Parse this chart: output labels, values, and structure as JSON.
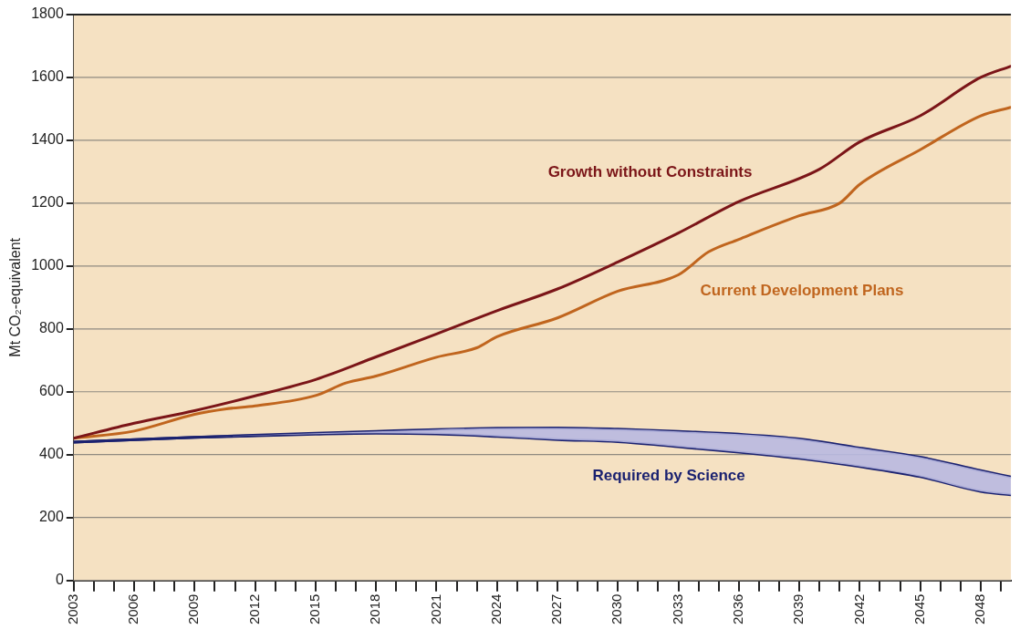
{
  "chart_data": {
    "type": "line",
    "ylabel": "Mt CO₂-equivalent",
    "xlim": [
      2003,
      2049.5
    ],
    "xticks": [
      2003,
      {
        "value": 2004,
        "label": null
      },
      {
        "value": 2005,
        "label": null
      },
      2006,
      {
        "value": 2007,
        "label": null
      },
      {
        "value": 2008,
        "label": null
      },
      2009,
      {
        "value": 2010,
        "label": null
      },
      {
        "value": 2011,
        "label": null
      },
      2012,
      {
        "value": 2013,
        "label": null
      },
      {
        "value": 2014,
        "label": null
      },
      2015,
      {
        "value": 2016,
        "label": null
      },
      {
        "value": 2017,
        "label": null
      },
      2018,
      {
        "value": 2019,
        "label": null
      },
      {
        "value": 2020,
        "label": null
      },
      2021,
      {
        "value": 2022,
        "label": null
      },
      {
        "value": 2023,
        "label": null
      },
      2024,
      {
        "value": 2025,
        "label": null
      },
      {
        "value": 2026,
        "label": null
      },
      2027,
      {
        "value": 2028,
        "label": null
      },
      {
        "value": 2029,
        "label": null
      },
      2030,
      {
        "value": 2031,
        "label": null
      },
      {
        "value": 2032,
        "label": null
      },
      2033,
      {
        "value": 2034,
        "label": null
      },
      {
        "value": 2035,
        "label": null
      },
      2036,
      {
        "value": 2037,
        "label": null
      },
      {
        "value": 2038,
        "label": null
      },
      2039,
      {
        "value": 2040,
        "label": null
      },
      {
        "value": 2041,
        "label": null
      },
      2042,
      {
        "value": 2043,
        "label": null
      },
      {
        "value": 2044,
        "label": null
      },
      2045,
      {
        "value": 2046,
        "label": null
      },
      {
        "value": 2047,
        "label": null
      },
      2048,
      {
        "value": 2049,
        "label": null
      }
    ],
    "ylim": [
      0,
      1800
    ],
    "yticks": [
      0,
      200,
      400,
      600,
      800,
      1000,
      1200,
      1400,
      1600,
      1800
    ],
    "grid": "y",
    "legend": false,
    "marker": "none",
    "line_style": "solid",
    "series": [
      {
        "name": "Growth without Constraints",
        "color": "#7b1518",
        "x": [
          2003,
          2006,
          2009,
          2012,
          2015,
          2018,
          2021,
          2024,
          2027,
          2030,
          2033,
          2036,
          2040,
          2042,
          2045,
          2048,
          2049.5
        ],
        "values": [
          452,
          500,
          540,
          587,
          639,
          711,
          784,
          858,
          927,
          1013,
          1105,
          1205,
          1308,
          1395,
          1478,
          1600,
          1636
        ]
      },
      {
        "name": "Current Development Plans",
        "color": "#c0651e",
        "x": [
          2003,
          2006,
          2009,
          2010.5,
          2012,
          2015,
          2016.5,
          2018,
          2021,
          2023,
          2024,
          2027,
          2030,
          2033,
          2034.5,
          2036,
          2039,
          2041,
          2042,
          2045,
          2048,
          2049.5
        ],
        "values": [
          452,
          475,
          528,
          545,
          555,
          588,
          628,
          650,
          710,
          740,
          775,
          835,
          920,
          972,
          1045,
          1085,
          1160,
          1200,
          1260,
          1370,
          1478,
          1505
        ]
      },
      {
        "name": "Required by Science",
        "color": "#1b2270",
        "x": [
          2003,
          2009,
          2015,
          2018,
          2021,
          2024,
          2027,
          2030,
          2033,
          2036,
          2039,
          2042,
          2045,
          2048,
          2049.5
        ],
        "values": [
          440,
          455,
          468,
          474,
          480,
          484,
          485,
          481,
          474,
          465,
          450,
          421,
          392,
          349,
          329
        ],
        "upper": [
          440,
          455,
          468,
          474,
          480,
          484,
          485,
          481,
          474,
          465,
          450,
          421,
          392,
          349,
          329
        ],
        "lower": [
          440,
          455,
          465,
          468,
          466,
          458,
          448,
          441,
          425,
          408,
          388,
          362,
          330,
          283,
          272
        ]
      },
      {
        "color": "#1b2270",
        "x": [
          2003,
          2009,
          2015,
          2018,
          2021,
          2024,
          2027,
          2030,
          2033,
          2036,
          2039,
          2042,
          2045,
          2048,
          2049.5
        ],
        "values": [
          440,
          455,
          465,
          468,
          466,
          458,
          448,
          441,
          425,
          408,
          388,
          362,
          330,
          283,
          272
        ]
      }
    ]
  }
}
